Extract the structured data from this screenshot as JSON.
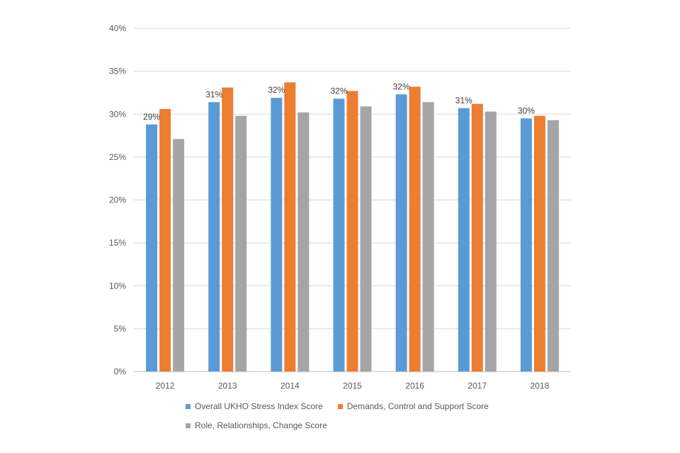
{
  "chart_data": {
    "type": "bar",
    "categories": [
      "2012",
      "2013",
      "2014",
      "2015",
      "2016",
      "2017",
      "2018"
    ],
    "series": [
      {
        "name": "Overall UKHO Stress Index Score",
        "color": "#5b9bd5",
        "values": [
          28.8,
          31.4,
          31.9,
          31.8,
          32.3,
          30.7,
          29.5
        ]
      },
      {
        "name": "Demands, Control and Support Score",
        "color": "#ed7d31",
        "values": [
          30.6,
          33.1,
          33.7,
          32.7,
          33.2,
          31.2,
          29.8
        ]
      },
      {
        "name": "Role, Relationships, Change Score",
        "color": "#a5a5a5",
        "values": [
          27.1,
          29.8,
          30.2,
          30.9,
          31.4,
          30.3,
          29.3
        ]
      }
    ],
    "data_labels": [
      "29%",
      "31%",
      "32%",
      "32%",
      "32%",
      "31%",
      "30%"
    ],
    "y_ticks": [
      "0%",
      "5%",
      "10%",
      "15%",
      "20%",
      "25%",
      "30%",
      "35%",
      "40%"
    ],
    "ylim": [
      0,
      40
    ],
    "grid": true,
    "legend_position": "bottom"
  }
}
